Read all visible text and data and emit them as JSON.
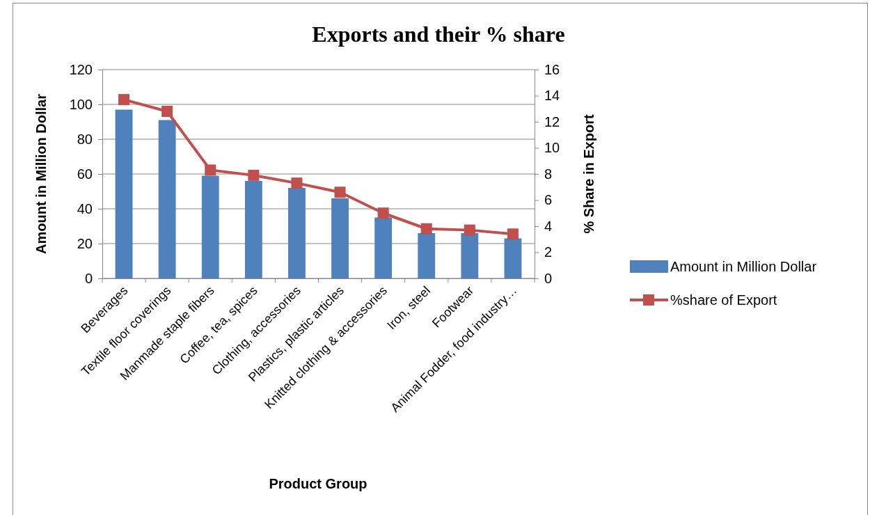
{
  "chart_data": {
    "type": "bar",
    "title": "Exports and their % share",
    "xlabel": "Product Group",
    "ylabel": "Amount in Million Dollar",
    "y2label": "% Share in Export",
    "categories": [
      "Beverages",
      "Textile floor coverings",
      "Manmade staple fibers",
      "Coffee, tea, spices",
      "Clothing, accessories",
      "Plastics, plastic articles",
      "Knitted clothing & accessories",
      "Iron, steel",
      "Footwear",
      "Animal Fodder, food industry…"
    ],
    "series": [
      {
        "name": "Amount in Million Dollar",
        "color": "#4f81bd",
        "values": [
          97,
          91,
          59,
          56,
          52,
          46,
          35,
          26,
          26,
          23
        ]
      },
      {
        "name": "%share of Export",
        "type": "line",
        "axis": "y2",
        "color": "#c0504d",
        "marker": "square",
        "values": [
          13.7,
          12.8,
          8.3,
          7.9,
          7.3,
          6.6,
          5.0,
          3.8,
          3.7,
          3.4
        ]
      }
    ],
    "ylim": [
      0,
      120
    ],
    "yticks": [
      0,
      20,
      40,
      60,
      80,
      100,
      120
    ],
    "y2lim": [
      0,
      16
    ],
    "y2ticks": [
      0,
      2,
      4,
      6,
      8,
      10,
      12,
      14,
      16
    ],
    "grid": "y",
    "legend": "right"
  }
}
